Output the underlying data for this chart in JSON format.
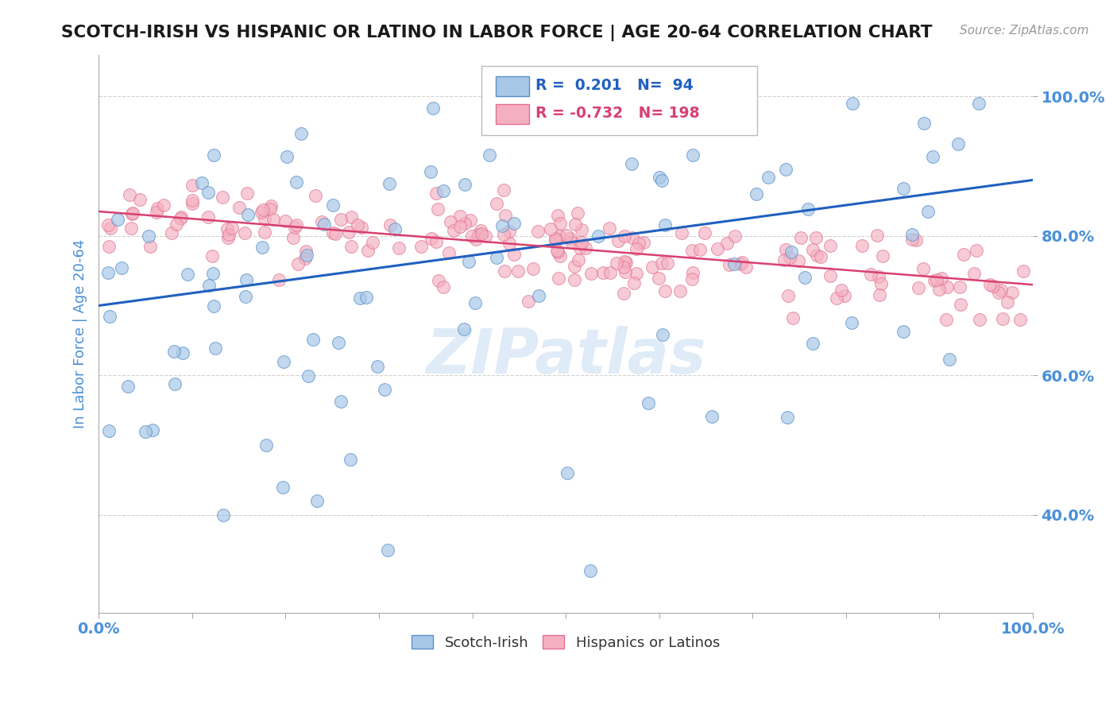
{
  "title": "SCOTCH-IRISH VS HISPANIC OR LATINO IN LABOR FORCE | AGE 20-64 CORRELATION CHART",
  "source": "Source: ZipAtlas.com",
  "ylabel": "In Labor Force | Age 20-64",
  "xlim": [
    0,
    1
  ],
  "ylim": [
    0.26,
    1.06
  ],
  "yticks": [
    0.4,
    0.6,
    0.8,
    1.0
  ],
  "ytick_labels": [
    "40.0%",
    "60.0%",
    "80.0%",
    "100.0%"
  ],
  "legend_box_blue": {
    "R": 0.201,
    "N": 94
  },
  "legend_box_pink": {
    "R": -0.732,
    "N": 198
  },
  "background_color": "#ffffff",
  "grid_color": "#cccccc",
  "title_color": "#1a1a1a",
  "axis_label_color": "#4a90d9",
  "tick_label_color": "#4a90d9",
  "watermark_text": "ZIPatlas",
  "blue_scatter_color": "#a8c8e8",
  "blue_scatter_edge": "#5a90c8",
  "pink_scatter_color": "#f4b0c0",
  "pink_scatter_edge": "#e07090",
  "blue_line_color": "#2060c0",
  "pink_line_color": "#d84070",
  "blue_line": {
    "x0": 0.0,
    "y0": 0.7,
    "x1": 1.0,
    "y1": 0.88
  },
  "pink_line": {
    "x0": 0.0,
    "y0": 0.835,
    "x1": 1.0,
    "y1": 0.73
  }
}
